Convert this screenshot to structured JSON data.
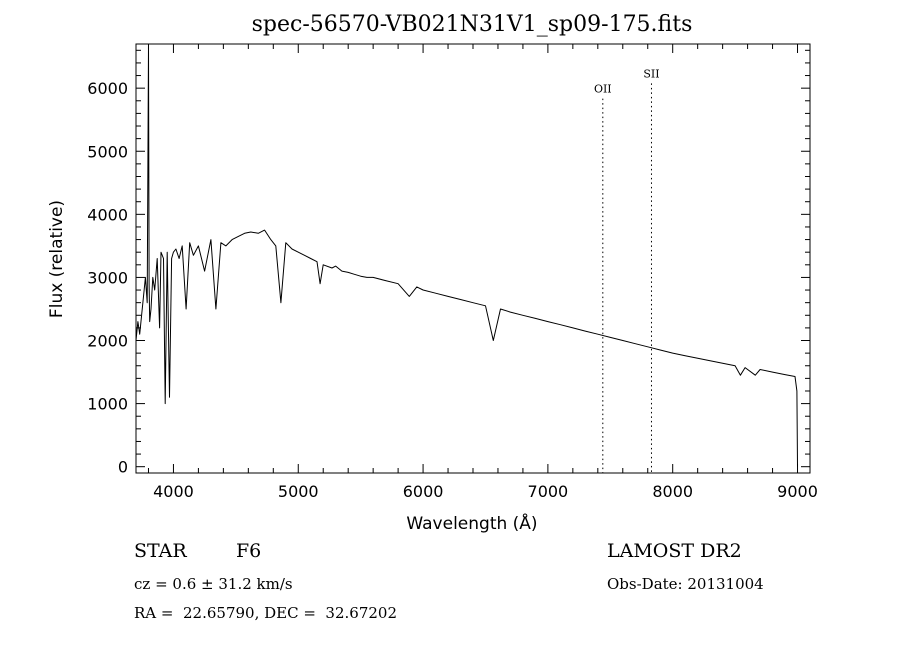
{
  "chart_data": {
    "type": "line",
    "title": "spec-56570-VB021N31V1_sp09-175.fits",
    "xlabel": "Wavelength (Å)",
    "ylabel": "Flux (relative)",
    "xlim": [
      3700,
      9100
    ],
    "ylim": [
      -100,
      6700
    ],
    "x_ticks": [
      4000,
      5000,
      6000,
      7000,
      8000,
      9000
    ],
    "y_ticks": [
      0,
      1000,
      2000,
      3000,
      4000,
      5000,
      6000
    ],
    "x_tick_labels": [
      "4000",
      "5000",
      "6000",
      "7000",
      "8000",
      "9000"
    ],
    "y_tick_labels": [
      "0",
      "1000",
      "2000",
      "3000",
      "4000",
      "5000",
      "6000"
    ],
    "grid": false,
    "series": [
      {
        "x": [
          3700,
          3715,
          3730,
          3745,
          3760,
          3775,
          3790,
          3800,
          3805,
          3810,
          3820,
          3835,
          3850,
          3870,
          3889,
          3900,
          3920,
          3934,
          3950,
          3968,
          3985,
          4000,
          4020,
          4045,
          4070,
          4101,
          4130,
          4160,
          4200,
          4250,
          4300,
          4340,
          4380,
          4420,
          4470,
          4520,
          4570,
          4620,
          4680,
          4730,
          4780,
          4820,
          4861,
          4900,
          4950,
          5000,
          5050,
          5100,
          5150,
          5175,
          5200,
          5270,
          5300,
          5350,
          5400,
          5450,
          5500,
          5550,
          5600,
          5700,
          5800,
          5890,
          5950,
          6000,
          6100,
          6200,
          6300,
          6400,
          6500,
          6563,
          6620,
          6700,
          6800,
          6900,
          7000,
          7100,
          7200,
          7300,
          7400,
          7500,
          7600,
          7700,
          7800,
          7900,
          8000,
          8100,
          8200,
          8300,
          8400,
          8500,
          8542,
          8580,
          8662,
          8700,
          8800,
          8900,
          8980,
          8995,
          9000
        ],
        "y": [
          2000,
          2300,
          2100,
          2400,
          2700,
          3000,
          2600,
          6700,
          2900,
          2300,
          2500,
          3000,
          2800,
          3300,
          2200,
          3400,
          3300,
          1000,
          3400,
          1100,
          3300,
          3400,
          3450,
          3300,
          3500,
          2500,
          3550,
          3350,
          3500,
          3100,
          3600,
          2500,
          3550,
          3500,
          3600,
          3650,
          3700,
          3720,
          3700,
          3750,
          3600,
          3500,
          2600,
          3550,
          3450,
          3400,
          3350,
          3300,
          3250,
          2900,
          3200,
          3150,
          3180,
          3100,
          3080,
          3050,
          3020,
          3000,
          3000,
          2950,
          2900,
          2700,
          2850,
          2800,
          2750,
          2700,
          2650,
          2600,
          2550,
          2000,
          2500,
          2450,
          2400,
          2350,
          2300,
          2250,
          2200,
          2150,
          2100,
          2050,
          2000,
          1950,
          1900,
          1850,
          1800,
          1760,
          1720,
          1680,
          1640,
          1600,
          1450,
          1570,
          1450,
          1540,
          1500,
          1460,
          1430,
          1200,
          0
        ]
      }
    ],
    "annotations": [
      {
        "label": "OII",
        "x": 7440,
        "label_y": 5930
      },
      {
        "label": "SII",
        "x": 7830,
        "label_y": 6170
      }
    ]
  },
  "footer": {
    "object_type": "STAR",
    "subclass": "F6",
    "survey": "LAMOST DR2",
    "cz": "cz = 0.6 ± 31.2 km/s",
    "obs_date": "Obs-Date: 20131004",
    "coords": "RA =  22.65790, DEC =  32.67202"
  }
}
